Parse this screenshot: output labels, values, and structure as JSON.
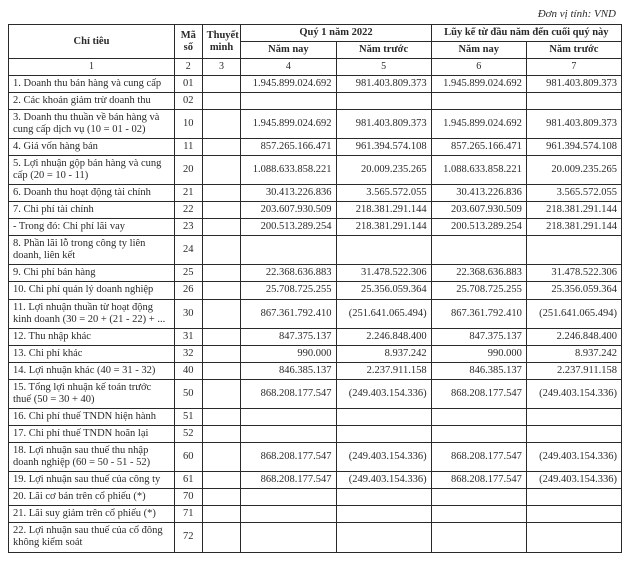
{
  "unit_label": "Đơn vị tính: VND",
  "headers": {
    "chi_tieu": "Chỉ tiêu",
    "ma_so": "Mã số",
    "thuyet_minh": "Thuyết minh",
    "quy": "Quý 1 năm 2022",
    "luy_ke": "Lũy kế từ đầu năm đến cuối quý này",
    "nam_nay": "Năm nay",
    "nam_truoc": "Năm trước",
    "col_nums": [
      "1",
      "2",
      "3",
      "4",
      "5",
      "6",
      "7"
    ]
  },
  "rows": [
    {
      "label": "1. Doanh thu bán hàng và cung cấp",
      "ms": "01",
      "tm": "",
      "q_nay": "1.945.899.024.692",
      "q_truoc": "981.403.809.373",
      "lk_nay": "1.945.899.024.692",
      "lk_truoc": "981.403.809.373"
    },
    {
      "label": "2. Các khoản giảm trừ doanh thu",
      "ms": "02",
      "tm": "",
      "q_nay": "",
      "q_truoc": "",
      "lk_nay": "",
      "lk_truoc": ""
    },
    {
      "label": "3. Doanh thu thuần về bán hàng và cung cấp dịch vụ (10 = 01 - 02)",
      "ms": "10",
      "tm": "",
      "q_nay": "1.945.899.024.692",
      "q_truoc": "981.403.809.373",
      "lk_nay": "1.945.899.024.692",
      "lk_truoc": "981.403.809.373"
    },
    {
      "label": "4. Giá vốn hàng bán",
      "ms": "11",
      "tm": "",
      "q_nay": "857.265.166.471",
      "q_truoc": "961.394.574.108",
      "lk_nay": "857.265.166.471",
      "lk_truoc": "961.394.574.108"
    },
    {
      "label": "5. Lợi nhuận gộp bán hàng và cung cấp (20 = 10 - 11)",
      "ms": "20",
      "tm": "",
      "q_nay": "1.088.633.858.221",
      "q_truoc": "20.009.235.265",
      "lk_nay": "1.088.633.858.221",
      "lk_truoc": "20.009.235.265"
    },
    {
      "label": "6. Doanh thu hoạt động tài chính",
      "ms": "21",
      "tm": "",
      "q_nay": "30.413.226.836",
      "q_truoc": "3.565.572.055",
      "lk_nay": "30.413.226.836",
      "lk_truoc": "3.565.572.055"
    },
    {
      "label": "7. Chi phí tài chính",
      "ms": "22",
      "tm": "",
      "q_nay": "203.607.930.509",
      "q_truoc": "218.381.291.144",
      "lk_nay": "203.607.930.509",
      "lk_truoc": "218.381.291.144"
    },
    {
      "label": "  - Trong đó: Chi phí lãi vay",
      "ms": "23",
      "tm": "",
      "q_nay": "200.513.289.254",
      "q_truoc": "218.381.291.144",
      "lk_nay": "200.513.289.254",
      "lk_truoc": "218.381.291.144"
    },
    {
      "label": "8. Phần lãi lỗ trong công ty liên doanh, liên kết",
      "ms": "24",
      "tm": "",
      "q_nay": "",
      "q_truoc": "",
      "lk_nay": "",
      "lk_truoc": ""
    },
    {
      "label": "9. Chi phí bán hàng",
      "ms": "25",
      "tm": "",
      "q_nay": "22.368.636.883",
      "q_truoc": "31.478.522.306",
      "lk_nay": "22.368.636.883",
      "lk_truoc": "31.478.522.306"
    },
    {
      "label": "10. Chi phí quản lý doanh nghiệp",
      "ms": "26",
      "tm": "",
      "q_nay": "25.708.725.255",
      "q_truoc": "25.356.059.364",
      "lk_nay": "25.708.725.255",
      "lk_truoc": "25.356.059.364"
    },
    {
      "label": "11. Lợi nhuận thuần từ hoạt động kinh doanh (30 = 20 + (21 - 22) + ...",
      "ms": "30",
      "tm": "",
      "q_nay": "867.361.792.410",
      "q_truoc": "(251.641.065.494)",
      "lk_nay": "867.361.792.410",
      "lk_truoc": "(251.641.065.494)"
    },
    {
      "label": "12. Thu nhập khác",
      "ms": "31",
      "tm": "",
      "q_nay": "847.375.137",
      "q_truoc": "2.246.848.400",
      "lk_nay": "847.375.137",
      "lk_truoc": "2.246.848.400"
    },
    {
      "label": "13. Chi phí khác",
      "ms": "32",
      "tm": "",
      "q_nay": "990.000",
      "q_truoc": "8.937.242",
      "lk_nay": "990.000",
      "lk_truoc": "8.937.242"
    },
    {
      "label": "14. Lợi nhuận khác (40 = 31 - 32)",
      "ms": "40",
      "tm": "",
      "q_nay": "846.385.137",
      "q_truoc": "2.237.911.158",
      "lk_nay": "846.385.137",
      "lk_truoc": "2.237.911.158"
    },
    {
      "label": "15. Tổng lợi nhuận kế toán trước thuế (50 = 30 + 40)",
      "ms": "50",
      "tm": "",
      "q_nay": "868.208.177.547",
      "q_truoc": "(249.403.154.336)",
      "lk_nay": "868.208.177.547",
      "lk_truoc": "(249.403.154.336)"
    },
    {
      "label": "16. Chi phí thuế TNDN hiện hành",
      "ms": "51",
      "tm": "",
      "q_nay": "",
      "q_truoc": "",
      "lk_nay": "",
      "lk_truoc": ""
    },
    {
      "label": "17. Chi phí thuế TNDN hoãn lại",
      "ms": "52",
      "tm": "",
      "q_nay": "",
      "q_truoc": "",
      "lk_nay": "",
      "lk_truoc": ""
    },
    {
      "label": "18. Lợi nhuận sau thuế thu nhập doanh nghiệp (60 = 50 - 51 - 52)",
      "ms": "60",
      "tm": "",
      "q_nay": "868.208.177.547",
      "q_truoc": "(249.403.154.336)",
      "lk_nay": "868.208.177.547",
      "lk_truoc": "(249.403.154.336)"
    },
    {
      "label": "19. Lợi nhuận sau thuế của công ty",
      "ms": "61",
      "tm": "",
      "q_nay": "868.208.177.547",
      "q_truoc": "(249.403.154.336)",
      "lk_nay": "868.208.177.547",
      "lk_truoc": "(249.403.154.336)"
    },
    {
      "label": "20. Lãi cơ bản trên cổ phiếu (*)",
      "ms": "70",
      "tm": "",
      "q_nay": "",
      "q_truoc": "",
      "lk_nay": "",
      "lk_truoc": ""
    },
    {
      "label": "21. Lãi suy giảm trên cổ phiếu (*)",
      "ms": "71",
      "tm": "",
      "q_nay": "",
      "q_truoc": "",
      "lk_nay": "",
      "lk_truoc": ""
    },
    {
      "label": "22. Lợi nhuận sau thuế của cổ đông không kiểm soát",
      "ms": "72",
      "tm": "",
      "q_nay": "",
      "q_truoc": "",
      "lk_nay": "",
      "lk_truoc": ""
    }
  ]
}
